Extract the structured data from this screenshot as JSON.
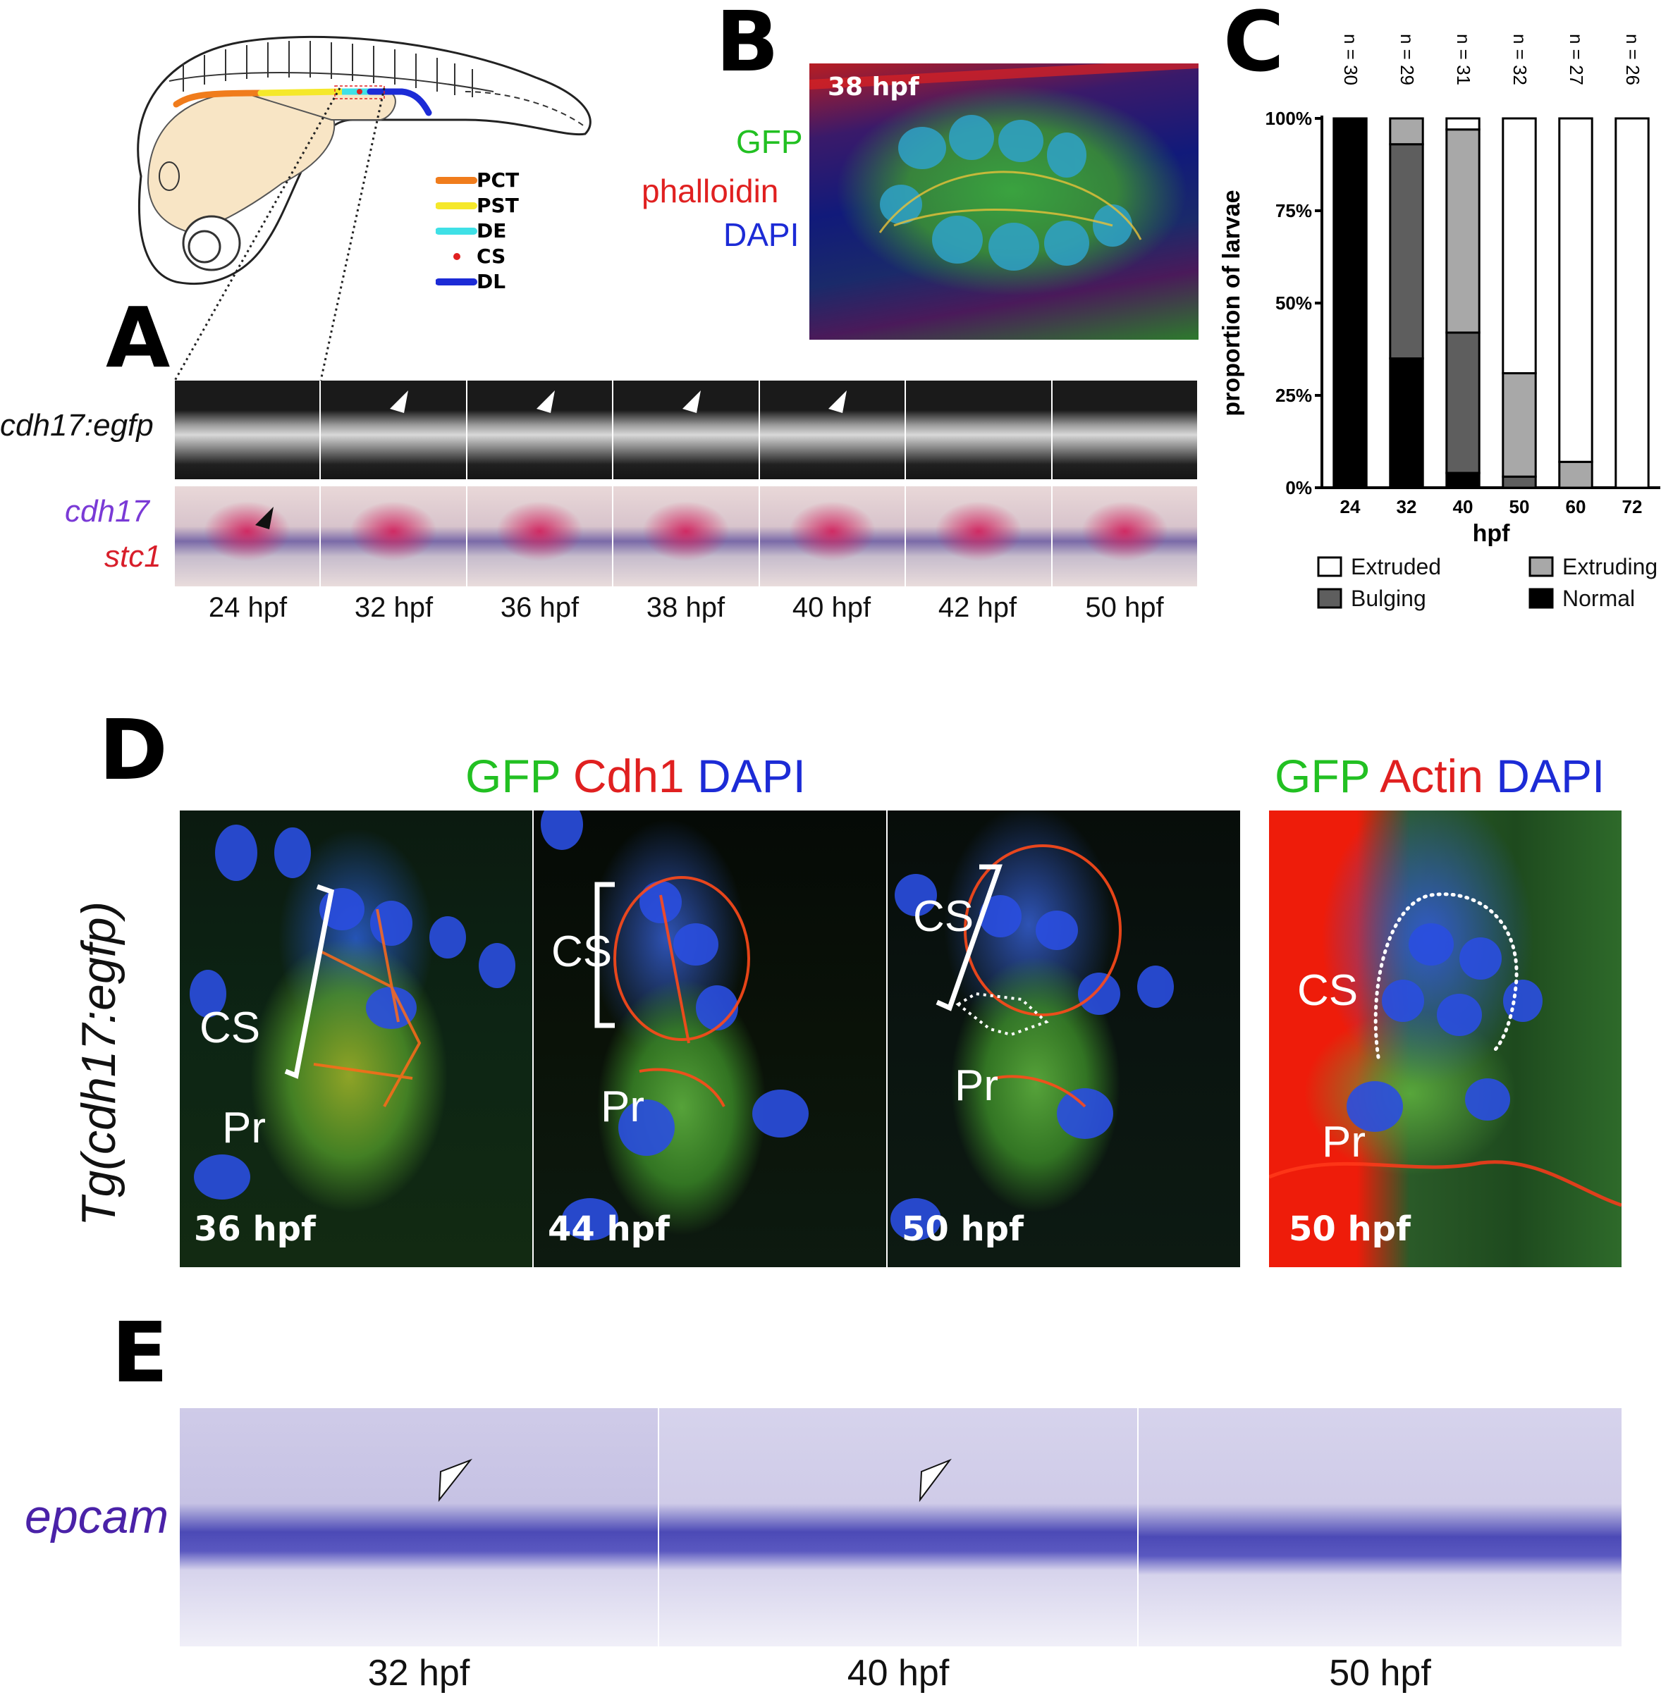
{
  "panels": {
    "A": "A",
    "B": "B",
    "C": "C",
    "D": "D",
    "E": "E"
  },
  "schematic": {
    "legend": [
      {
        "label": "PCT",
        "color": "#f07c1c"
      },
      {
        "label": "PST",
        "color": "#f5e82a"
      },
      {
        "label": "DE",
        "color": "#3fe0e6"
      },
      {
        "label": "CS",
        "color": "#e02020"
      },
      {
        "label": "DL",
        "color": "#1c2bd6"
      }
    ]
  },
  "panelA": {
    "row1_label": "cdh17:egfp",
    "row2_label_1": "cdh17",
    "row2_label_2": "stc1",
    "row1_color": "#111111",
    "row2_color_1": "#7a3ad6",
    "row2_color_2": "#d81e2a",
    "timepoints": [
      "24 hpf",
      "32 hpf",
      "36 hpf",
      "38 hpf",
      "40 hpf",
      "42 hpf",
      "50 hpf"
    ]
  },
  "panelB": {
    "timepoint": "38 hpf",
    "channels": [
      {
        "label": "GFP",
        "color": "#22c022"
      },
      {
        "label": "phalloidin",
        "color": "#e02020"
      },
      {
        "label": "DAPI",
        "color": "#1c2bd6"
      }
    ]
  },
  "chart_data": {
    "type": "bar",
    "stacked": true,
    "categories": [
      "24",
      "32",
      "40",
      "50",
      "60",
      "72"
    ],
    "n_labels": [
      "n = 30",
      "n = 29",
      "n = 31",
      "n = 32",
      "n = 27",
      "n = 26"
    ],
    "series": [
      {
        "name": "Normal",
        "color": "#000000",
        "values": [
          100,
          35,
          4,
          0,
          0,
          0
        ]
      },
      {
        "name": "Bulging",
        "color": "#5e5e5e",
        "values": [
          0,
          58,
          38,
          3,
          0,
          0
        ]
      },
      {
        "name": "Extruding",
        "color": "#a8a8a8",
        "values": [
          0,
          7,
          55,
          28,
          7,
          0
        ]
      },
      {
        "name": "Extruded",
        "color": "#ffffff",
        "values": [
          0,
          0,
          3,
          69,
          93,
          100
        ]
      }
    ],
    "xlabel": "hpf",
    "ylabel": "proportion of larvae",
    "ylim": [
      0,
      100
    ],
    "yticks": [
      "0%",
      "25%",
      "50%",
      "75%",
      "100%"
    ],
    "legend_placement": "bottom"
  },
  "panelD": {
    "side_label": "Tg(cdh17:egfp)",
    "header1": {
      "gfp": "GFP",
      "cdh1": "Cdh1",
      "dapi": "DAPI"
    },
    "header2": {
      "gfp": "GFP",
      "actin": "Actin",
      "dapi": "DAPI"
    },
    "frames": [
      {
        "time": "36 hpf",
        "cs": "CS",
        "pr": "Pr"
      },
      {
        "time": "44 hpf",
        "cs": "CS",
        "pr": "Pr"
      },
      {
        "time": "50 hpf",
        "cs": "CS",
        "pr": "Pr"
      },
      {
        "time": "50 hpf",
        "cs": "CS",
        "pr": "Pr"
      }
    ]
  },
  "panelE": {
    "label": "epcam",
    "label_color": "#4a22a8",
    "timepoints": [
      "32 hpf",
      "40 hpf",
      "50 hpf"
    ]
  }
}
